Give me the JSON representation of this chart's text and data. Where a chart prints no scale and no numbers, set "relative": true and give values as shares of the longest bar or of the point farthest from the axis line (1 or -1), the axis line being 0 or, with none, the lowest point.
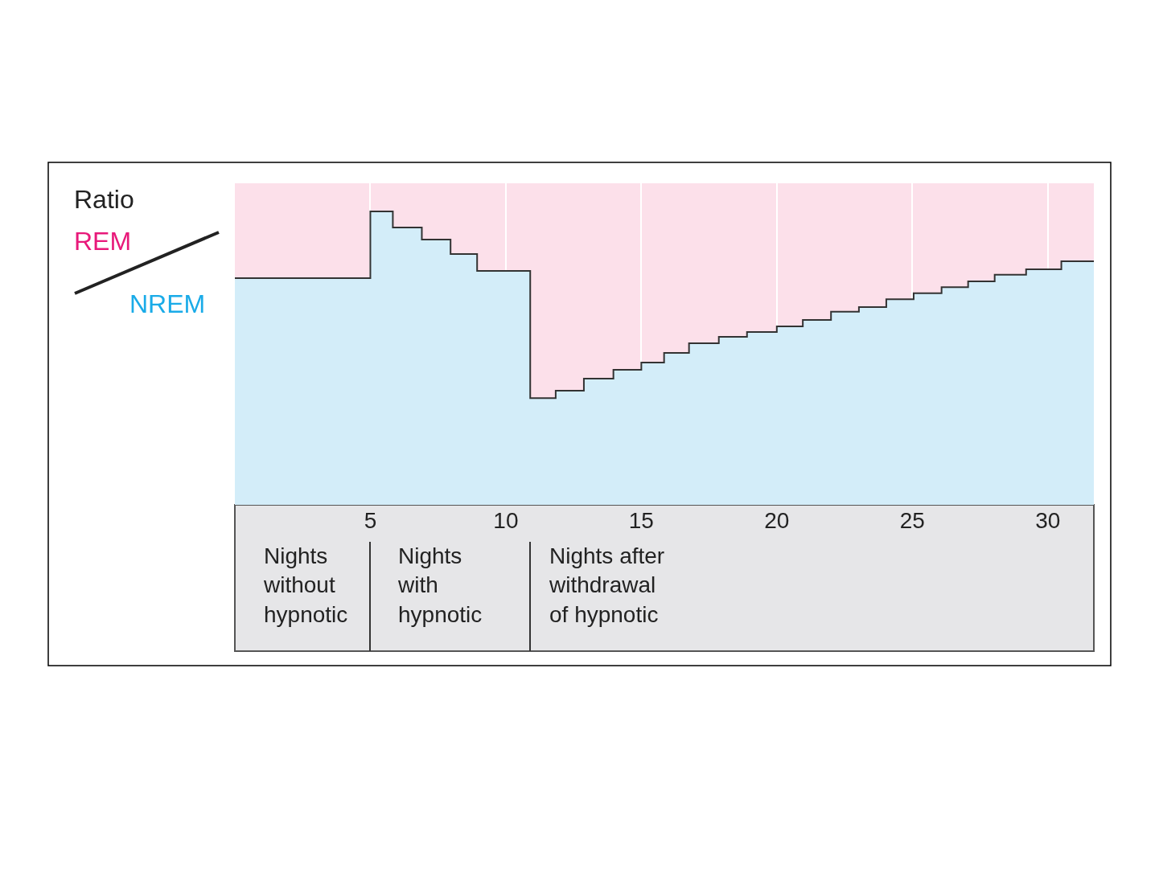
{
  "chart_data": {
    "type": "area",
    "relative": true,
    "ylabel": "Ratio",
    "annotations": [
      "REM",
      "NREM",
      "Nights\nwithout\nhypnotic",
      "Nights\nwith\nhypnotic",
      "Nights after\nwithdrawal\nof hypnotic"
    ],
    "xlim": [
      0,
      31.7
    ],
    "xticks": [
      5,
      10,
      15,
      20,
      25,
      30
    ],
    "grid": "x",
    "tick_labels": "x",
    "series": [
      {
        "color": "#d3edf9",
        "x": [
          0,
          5,
          5.83,
          6.9,
          7.96,
          8.94,
          10.9,
          11.84,
          12.88,
          13.97,
          15,
          15.84,
          16.76,
          17.86,
          18.9,
          20,
          20.96,
          22,
          23.03,
          24.04,
          25.05,
          26.08,
          27.06,
          28.04,
          29.2,
          30.5,
          31.7
        ],
        "values": [
          0.773,
          1,
          0.945,
          0.904,
          0.855,
          0.797,
          0.364,
          0.389,
          0.43,
          0.46,
          0.485,
          0.518,
          0.551,
          0.573,
          0.589,
          0.608,
          0.63,
          0.658,
          0.674,
          0.701,
          0.721,
          0.742,
          0.762,
          0.784,
          0.803,
          0.83,
          0.83
        ]
      },
      {
        "type": "step",
        "color": "#333333",
        "x": [
          0,
          5,
          5.83,
          6.9,
          7.96,
          8.94,
          10.9,
          11.84,
          12.88,
          13.97,
          15,
          15.84,
          16.76,
          17.86,
          18.9,
          20,
          20.96,
          22,
          23.03,
          24.04,
          25.05,
          26.08,
          27.06,
          28.04,
          29.2,
          30.5,
          31.7
        ],
        "values": [
          0.773,
          1,
          0.945,
          0.904,
          0.855,
          0.797,
          0.364,
          0.389,
          0.43,
          0.46,
          0.485,
          0.518,
          0.551,
          0.573,
          0.589,
          0.608,
          0.63,
          0.658,
          0.674,
          0.701,
          0.721,
          0.742,
          0.762,
          0.784,
          0.803,
          0.83,
          0.83
        ]
      }
    ]
  }
}
